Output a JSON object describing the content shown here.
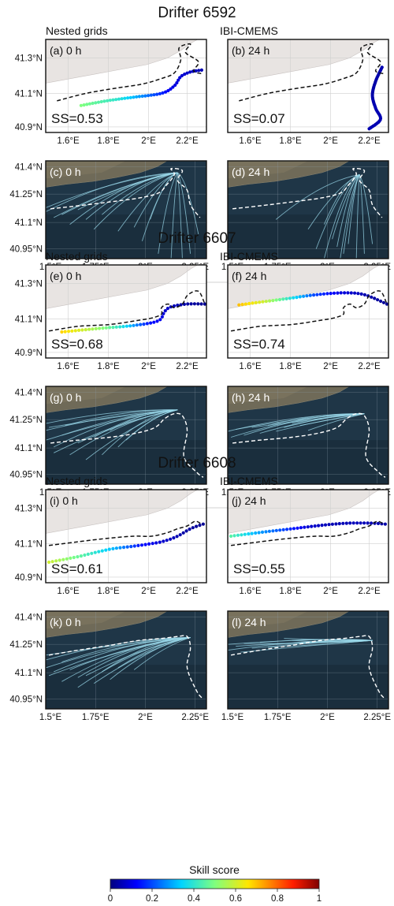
{
  "colorbar": {
    "label": "Skill score",
    "ticks": [
      "0",
      "0.2",
      "0.4",
      "0.6",
      "0.8",
      "1"
    ]
  },
  "axes": {
    "top_lat_ticks": [
      "41.3°N",
      "41.1°N",
      "40.9°N"
    ],
    "top_lon_ticks": [
      "1.6°E",
      "1.8°E",
      "2°E",
      "2.2°E"
    ],
    "bottom_lat_ticks": [
      "41.4°N",
      "41.25°N",
      "41.1°N",
      "40.95°N"
    ],
    "bottom_lon_ticks": [
      "1.5°E",
      "1.75°E",
      "2°E",
      "2.25°E"
    ]
  },
  "chart_data": [
    {
      "title": "Drifter 6592",
      "left_model": "Nested grids",
      "right_model": "IBI-CMEMS",
      "panels": [
        {
          "label": "(a) 0 h",
          "ss": "SS=0.53"
        },
        {
          "label": "(b) 24 h",
          "ss": "SS=0.07"
        },
        {
          "label": "(c) 0 h"
        },
        {
          "label": "(d) 24 h"
        }
      ]
    },
    {
      "title": "Drifter 6607",
      "left_model": "Nested grids",
      "right_model": "IBI-CMEMS",
      "panels": [
        {
          "label": "(e) 0 h",
          "ss": "SS=0.68"
        },
        {
          "label": "(f) 24 h",
          "ss": "SS=0.74"
        },
        {
          "label": "(g) 0 h"
        },
        {
          "label": "(h) 24 h"
        }
      ]
    },
    {
      "title": "Drifter 6608",
      "left_model": "Nested grids",
      "right_model": "IBI-CMEMS",
      "panels": [
        {
          "label": "(i) 0 h",
          "ss": "SS=0.61"
        },
        {
          "label": "(j) 24 h",
          "ss": "SS=0.55"
        },
        {
          "label": "(k) 0 h"
        },
        {
          "label": "(l) 24 h"
        }
      ]
    }
  ]
}
